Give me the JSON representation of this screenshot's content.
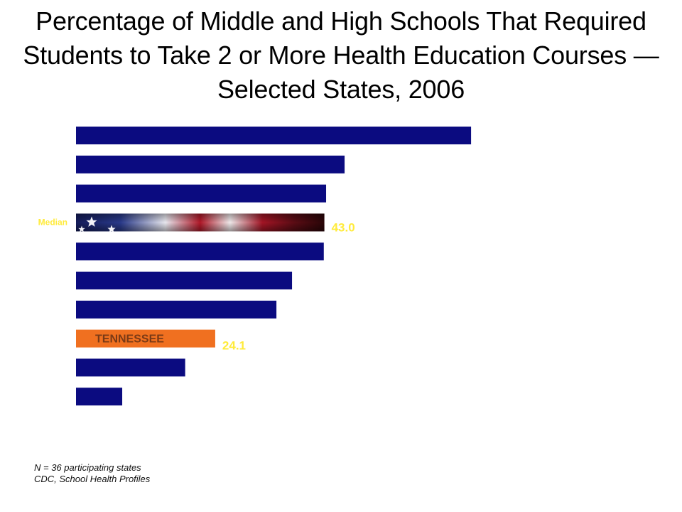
{
  "title": "Percentage of Middle and High Schools That Required Students to Take 2 or More Health Education Courses  — Selected States, 2006",
  "notes": {
    "n": "N = 36 participating states",
    "source": "CDC, School Health Profiles"
  },
  "chart_data": {
    "type": "bar",
    "orientation": "horizontal",
    "title": "Percentage of Middle and High Schools That Required Students to Take 2 or More Health Education Courses  — Selected States, 2006",
    "xlim": [
      0,
      100
    ],
    "grid": false,
    "values": [
      68.4,
      46.5,
      43.3,
      43.0,
      42.9,
      37.4,
      34.7,
      24.1,
      18.9,
      8.0
    ],
    "median": {
      "index": 3,
      "label": "Median",
      "value_label": "43.0"
    },
    "highlight": {
      "index": 7,
      "label": "TENNESSEE",
      "value_label": "24.1"
    },
    "colors": {
      "bar": "#0b0b80",
      "highlight": "#f07020",
      "value_label": "#ffeb3b",
      "median_label": "#ffeb3b",
      "flag_red": "#8a1520",
      "flag_blue": "#16206a"
    }
  }
}
